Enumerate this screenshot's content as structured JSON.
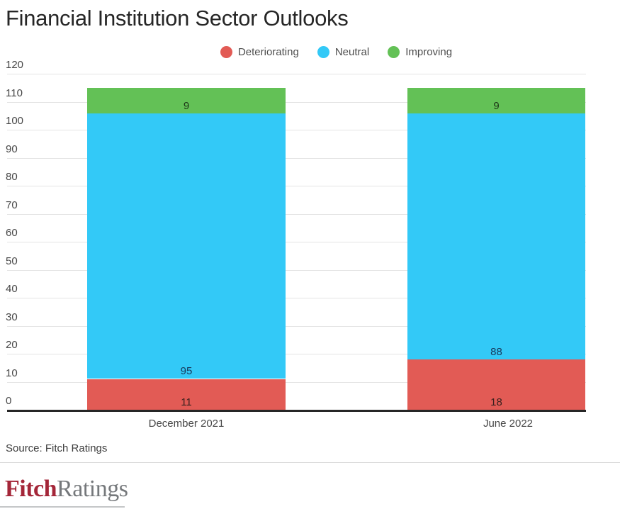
{
  "page": {
    "title": "Financial Institution Sector Outlooks"
  },
  "legend": {
    "items": [
      {
        "label": "Deteriorating",
        "color": "#e25b55"
      },
      {
        "label": "Neutral",
        "color": "#33c9f7"
      },
      {
        "label": "Improving",
        "color": "#63c156"
      }
    ]
  },
  "chart_data": {
    "type": "bar",
    "stacked": true,
    "title": "Financial Institution Sector Outlooks",
    "categories": [
      "December 2021",
      "June 2022"
    ],
    "series": [
      {
        "name": "Deteriorating",
        "color": "#e25b55",
        "label_color": "#38201e",
        "values": [
          11,
          18
        ]
      },
      {
        "name": "Neutral",
        "color": "#33c9f7",
        "label_color": "#17395c",
        "values": [
          95,
          88
        ]
      },
      {
        "name": "Improving",
        "color": "#63c156",
        "label_color": "#1d3517",
        "values": [
          9,
          9
        ]
      }
    ],
    "totals": [
      115,
      115
    ],
    "xlabel": "",
    "ylabel": "",
    "ylim": [
      0,
      120
    ],
    "ytick_step": 10,
    "yticks": [
      0,
      10,
      20,
      30,
      40,
      50,
      60,
      70,
      80,
      90,
      100,
      110,
      120
    ],
    "grid": "horizontal",
    "legend_position": "top-center",
    "value_labels": "inside-bottom"
  },
  "source": {
    "text": "Source: Fitch Ratings"
  },
  "logo": {
    "fitch": "Fitch",
    "ratings": "Ratings",
    "fitch_color": "#a42638",
    "ratings_color": "#75787b"
  }
}
